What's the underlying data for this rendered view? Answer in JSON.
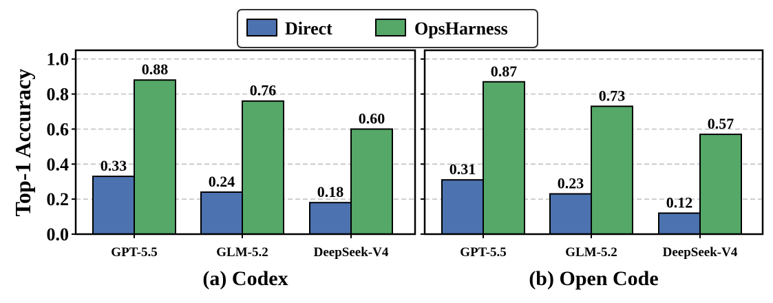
{
  "ylabel": "Top-1 Accuracy",
  "legend": {
    "placement": "top-center",
    "items": [
      {
        "label": "Direct",
        "color": "#4c72b0"
      },
      {
        "label": "OpsHarness",
        "color": "#55a868"
      }
    ]
  },
  "chart_data": [
    {
      "type": "bar",
      "title": "(a) Codex",
      "categories": [
        "GPT-5.5",
        "GLM-5.2",
        "DeepSeek-V4"
      ],
      "series": [
        {
          "name": "Direct",
          "values": [
            0.33,
            0.24,
            0.18
          ],
          "color": "#4c72b0"
        },
        {
          "name": "OpsHarness",
          "values": [
            0.88,
            0.76,
            0.6
          ],
          "color": "#55a868"
        }
      ],
      "value_labels": [
        [
          "0.33",
          "0.24",
          "0.18"
        ],
        [
          "0.88",
          "0.76",
          "0.60"
        ]
      ],
      "ylabel": "Top-1 Accuracy",
      "ylim": [
        0,
        1.05
      ],
      "yticks": [
        "0.0",
        "0.2",
        "0.4",
        "0.6",
        "0.8",
        "1.0"
      ],
      "grid": true
    },
    {
      "type": "bar",
      "title": "(b) Open Code",
      "categories": [
        "GPT-5.5",
        "GLM-5.2",
        "DeepSeek-V4"
      ],
      "series": [
        {
          "name": "Direct",
          "values": [
            0.31,
            0.23,
            0.12
          ],
          "color": "#4c72b0"
        },
        {
          "name": "OpsHarness",
          "values": [
            0.87,
            0.73,
            0.57
          ],
          "color": "#55a868"
        }
      ],
      "value_labels": [
        [
          "0.31",
          "0.23",
          "0.12"
        ],
        [
          "0.87",
          "0.73",
          "0.57"
        ]
      ],
      "ylim": [
        0,
        1.05
      ],
      "grid": true
    }
  ]
}
